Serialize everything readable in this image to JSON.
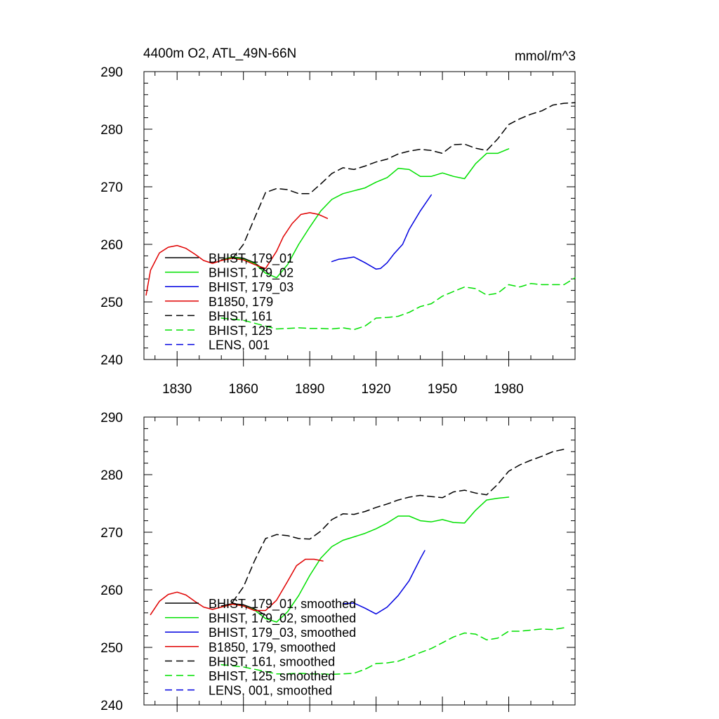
{
  "header": {
    "title": "4400m O2, ATL_49N-66N",
    "units": "mmol/m^3"
  },
  "colors": {
    "black": "#000000",
    "green": "#00e000",
    "blue": "#0000e0",
    "red": "#e00000"
  },
  "chart_data": [
    {
      "type": "line",
      "title": "4400m O2, ATL_49N-66N",
      "ylabel_right": "mmol/m^3",
      "xlim": [
        1815,
        2010
      ],
      "ylim": [
        240,
        290
      ],
      "x_ticks": [
        1830,
        1860,
        1890,
        1920,
        1950,
        1980
      ],
      "x_tick_labels": [
        "1830",
        "1860",
        "1890",
        "1920",
        "1950",
        "1980"
      ],
      "y_ticks": [
        240,
        250,
        260,
        270,
        280,
        290
      ],
      "y_tick_labels": [
        "240",
        "250",
        "260",
        "270",
        "280",
        "290"
      ],
      "legend": "lower-left",
      "series": [
        {
          "name": "BHIST, 179_01",
          "color": "#000000",
          "dash": false,
          "x": [
            1850,
            1855,
            1860,
            1865,
            1870
          ],
          "y": [
            257.3,
            257.8,
            257.6,
            256.8,
            255.4
          ]
        },
        {
          "name": "BHIST, 179_02",
          "color": "#00e000",
          "dash": false,
          "x": [
            1850,
            1855,
            1860,
            1865,
            1870,
            1875,
            1880,
            1885,
            1890,
            1895,
            1900,
            1905,
            1910,
            1915,
            1920,
            1925,
            1930,
            1935,
            1940,
            1945,
            1950,
            1955,
            1960,
            1965,
            1970,
            1975,
            1980
          ],
          "y": [
            257.2,
            257.8,
            257.4,
            256.7,
            255.0,
            254.2,
            256.5,
            260.0,
            263.0,
            265.8,
            267.8,
            268.8,
            269.3,
            269.8,
            270.8,
            271.6,
            273.2,
            273.0,
            271.8,
            271.8,
            272.4,
            271.8,
            271.4,
            274.0,
            275.8,
            275.8,
            276.6
          ]
        },
        {
          "name": "BHIST, 179_03",
          "color": "#0000e0",
          "dash": false,
          "x": [
            1900,
            1903,
            1905,
            1910,
            1915,
            1920,
            1922,
            1925,
            1928,
            1932,
            1935,
            1940,
            1945
          ],
          "y": [
            257.0,
            257.4,
            257.5,
            257.8,
            256.8,
            255.7,
            255.8,
            256.8,
            258.3,
            260.0,
            262.6,
            265.8,
            268.6
          ]
        },
        {
          "name": "B1850, 179",
          "color": "#e00000",
          "dash": false,
          "x": [
            1816,
            1818,
            1822,
            1826,
            1830,
            1834,
            1838,
            1842,
            1846,
            1850,
            1855,
            1860,
            1865,
            1870,
            1875,
            1878,
            1882,
            1886,
            1890,
            1894,
            1898
          ],
          "y": [
            251.2,
            255.5,
            258.5,
            259.5,
            259.8,
            259.3,
            258.3,
            257.2,
            256.7,
            257.2,
            257.6,
            257.3,
            256.5,
            255.8,
            258.8,
            261.3,
            263.6,
            265.2,
            265.5,
            265.2,
            264.5
          ]
        },
        {
          "name": "BHIST, 161",
          "color": "#000000",
          "dash": true,
          "x": [
            1855,
            1860,
            1865,
            1870,
            1875,
            1880,
            1885,
            1890,
            1895,
            1900,
            1905,
            1910,
            1915,
            1920,
            1925,
            1930,
            1935,
            1940,
            1945,
            1950,
            1955,
            1960,
            1965,
            1970,
            1975,
            1980,
            1985,
            1990,
            1995,
            2000,
            2005,
            2010
          ],
          "y": [
            257.5,
            260.0,
            264.5,
            269.0,
            269.7,
            269.5,
            268.8,
            268.8,
            270.5,
            272.3,
            273.3,
            273.0,
            273.6,
            274.3,
            274.8,
            275.7,
            276.2,
            276.5,
            276.3,
            275.8,
            277.3,
            277.4,
            276.7,
            276.3,
            278.3,
            280.8,
            281.8,
            282.6,
            283.2,
            284.2,
            284.5,
            284.6
          ]
        },
        {
          "name": "BHIST, 125",
          "color": "#00e000",
          "dash": true,
          "x": [
            1850,
            1860,
            1870,
            1875,
            1880,
            1885,
            1890,
            1895,
            1900,
            1905,
            1910,
            1915,
            1920,
            1925,
            1930,
            1935,
            1940,
            1945,
            1950,
            1955,
            1960,
            1965,
            1970,
            1975,
            1980,
            1985,
            1990,
            1995,
            2000,
            2005,
            2010
          ],
          "y": [
            247.2,
            246.8,
            245.8,
            245.3,
            245.4,
            245.5,
            245.4,
            245.4,
            245.3,
            245.5,
            245.2,
            245.8,
            247.2,
            247.3,
            247.5,
            248.2,
            249.2,
            249.7,
            251.0,
            251.8,
            252.6,
            252.3,
            251.2,
            251.5,
            253.0,
            252.6,
            253.2,
            253.0,
            253.0,
            253.0,
            254.2
          ]
        },
        {
          "name": "LENS, 001",
          "color": "#0000e0",
          "dash": true,
          "x": [],
          "y": []
        }
      ]
    },
    {
      "type": "line",
      "xlim": [
        1815,
        2010
      ],
      "ylim": [
        240,
        290
      ],
      "x_ticks": [
        1830,
        1860,
        1890,
        1920,
        1950,
        1980
      ],
      "y_ticks": [
        240,
        250,
        260,
        270,
        280,
        290
      ],
      "y_tick_labels": [
        "240",
        "250",
        "260",
        "270",
        "280",
        "290"
      ],
      "legend": "lower-left",
      "series": [
        {
          "name": "BHIST, 179_01, smoothed",
          "color": "#000000",
          "dash": false,
          "x": [
            1850,
            1855,
            1860,
            1865,
            1870
          ],
          "y": [
            257.2,
            257.6,
            257.4,
            256.7,
            255.6
          ]
        },
        {
          "name": "BHIST, 179_02, smoothed",
          "color": "#00e000",
          "dash": false,
          "x": [
            1850,
            1855,
            1860,
            1865,
            1870,
            1875,
            1880,
            1885,
            1890,
            1895,
            1900,
            1905,
            1910,
            1915,
            1920,
            1925,
            1930,
            1935,
            1940,
            1945,
            1950,
            1955,
            1960,
            1965,
            1970,
            1975,
            1980
          ],
          "y": [
            257.0,
            257.5,
            257.2,
            256.5,
            255.0,
            254.4,
            256.2,
            259.0,
            262.5,
            265.5,
            267.5,
            268.6,
            269.2,
            269.8,
            270.6,
            271.6,
            272.8,
            272.8,
            272.0,
            271.8,
            272.2,
            271.7,
            271.6,
            273.8,
            275.6,
            275.9,
            276.1
          ]
        },
        {
          "name": "BHIST, 179_03, smoothed",
          "color": "#0000e0",
          "dash": false,
          "x": [
            1905,
            1910,
            1915,
            1920,
            1925,
            1930,
            1935,
            1940,
            1942
          ],
          "y": [
            257.6,
            257.7,
            256.8,
            255.8,
            257.0,
            259.0,
            261.6,
            265.4,
            266.8
          ]
        },
        {
          "name": "B1850, 179, smoothed",
          "color": "#e00000",
          "dash": false,
          "x": [
            1818,
            1822,
            1826,
            1830,
            1834,
            1838,
            1842,
            1846,
            1850,
            1855,
            1860,
            1865,
            1870,
            1875,
            1880,
            1884,
            1888,
            1892,
            1896
          ],
          "y": [
            255.7,
            258.0,
            259.2,
            259.6,
            259.1,
            258.0,
            257.0,
            256.6,
            257.0,
            257.5,
            257.2,
            256.4,
            256.4,
            258.2,
            261.5,
            264.2,
            265.3,
            265.3,
            265.0
          ]
        },
        {
          "name": "BHIST, 161, smoothed",
          "color": "#000000",
          "dash": true,
          "x": [
            1855,
            1860,
            1865,
            1870,
            1875,
            1880,
            1885,
            1890,
            1895,
            1900,
            1905,
            1910,
            1915,
            1920,
            1925,
            1930,
            1935,
            1940,
            1945,
            1950,
            1955,
            1960,
            1965,
            1970,
            1975,
            1980,
            1985,
            1990,
            1995,
            2000,
            2005
          ],
          "y": [
            257.8,
            260.5,
            265.0,
            268.9,
            269.6,
            269.4,
            268.9,
            268.8,
            270.2,
            272.2,
            273.2,
            273.1,
            273.6,
            274.3,
            274.9,
            275.6,
            276.1,
            276.4,
            276.2,
            276.0,
            277.0,
            277.3,
            276.8,
            276.5,
            278.3,
            280.6,
            281.7,
            282.5,
            283.2,
            284.0,
            284.4
          ]
        },
        {
          "name": "BHIST, 125, smoothed",
          "color": "#00e000",
          "dash": true,
          "x": [
            1850,
            1860,
            1870,
            1875,
            1880,
            1885,
            1890,
            1895,
            1900,
            1905,
            1910,
            1915,
            1920,
            1925,
            1930,
            1935,
            1940,
            1945,
            1950,
            1955,
            1960,
            1965,
            1970,
            1975,
            1980,
            1985,
            1990,
            1995,
            2000,
            2005
          ],
          "y": [
            247.0,
            246.6,
            245.8,
            245.4,
            245.4,
            245.5,
            245.4,
            245.4,
            245.3,
            245.4,
            245.5,
            246.2,
            247.2,
            247.3,
            247.6,
            248.3,
            249.1,
            249.8,
            250.8,
            251.8,
            252.5,
            252.3,
            251.3,
            251.6,
            252.8,
            252.8,
            253.0,
            253.2,
            253.1,
            253.4
          ]
        },
        {
          "name": "LENS, 001, smoothed",
          "color": "#0000e0",
          "dash": true,
          "x": [],
          "y": []
        }
      ]
    }
  ]
}
